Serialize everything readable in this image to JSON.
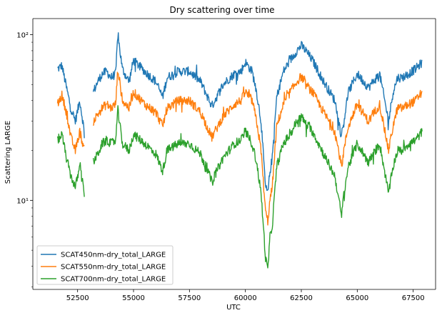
{
  "chart_data": {
    "type": "line",
    "title": "Dry scattering over time",
    "xlabel": "UTC",
    "ylabel": "Scattering LARGE",
    "xlim": [
      50500,
      68500
    ],
    "ylim": [
      2.9,
      125
    ],
    "yscale": "log",
    "grid": false,
    "legend_position": "lower-left",
    "x_ticks": [
      52500,
      55000,
      57500,
      60000,
      62500,
      65000,
      67500
    ],
    "x_tick_labels": [
      "52500",
      "55000",
      "57500",
      "60000",
      "62500",
      "65000",
      "67500"
    ],
    "y_ticks": [
      10,
      100
    ],
    "y_tick_labels": [
      "10¹",
      "10²"
    ],
    "x": [
      51600,
      51800,
      52000,
      52200,
      52400,
      52600,
      52800,
      53000,
      53200,
      53400,
      53600,
      53800,
      54000,
      54200,
      54300,
      54500,
      54800,
      55000,
      55500,
      56000,
      56300,
      56500,
      57000,
      57500,
      58000,
      58500,
      59000,
      59500,
      59800,
      60000,
      60300,
      60500,
      60700,
      60900,
      61000,
      61100,
      61200,
      61400,
      61700,
      62000,
      62300,
      62500,
      62700,
      63000,
      63500,
      64000,
      64300,
      64400,
      64600,
      65000,
      65500,
      66000,
      66400,
      66600,
      66800,
      67000,
      67300,
      67600,
      67900
    ],
    "series": [
      {
        "name": "SCAT450nm-dry_total_LARGE",
        "color": "#1f77b4",
        "values": [
          62,
          65,
          48,
          36,
          30,
          40,
          26,
          null,
          45,
          52,
          58,
          60,
          55,
          58,
          100,
          62,
          52,
          70,
          60,
          52,
          42,
          55,
          60,
          60,
          52,
          37,
          50,
          58,
          60,
          68,
          60,
          45,
          30,
          12,
          11,
          15,
          18,
          42,
          60,
          70,
          80,
          86,
          80,
          70,
          52,
          40,
          24,
          30,
          45,
          58,
          48,
          58,
          30,
          45,
          55,
          55,
          58,
          62,
          68
        ]
      },
      {
        "name": "SCAT550nm-dry_total_LARGE",
        "color": "#ff7f0e",
        "values": [
          38,
          43,
          34,
          24,
          20,
          26,
          20,
          null,
          30,
          33,
          36,
          38,
          36,
          38,
          62,
          40,
          36,
          45,
          38,
          34,
          28,
          36,
          40,
          40,
          34,
          24,
          32,
          38,
          40,
          45,
          40,
          30,
          20,
          8.5,
          7.5,
          10,
          12,
          28,
          38,
          45,
          52,
          56,
          50,
          45,
          34,
          26,
          16,
          20,
          28,
          38,
          30,
          38,
          20,
          28,
          36,
          36,
          38,
          40,
          45
        ]
      },
      {
        "name": "SCAT700nm-dry_total_LARGE",
        "color": "#2ca02c",
        "values": [
          23,
          25,
          18,
          14,
          12,
          16,
          11,
          null,
          17,
          19,
          22,
          23,
          22,
          23,
          35,
          22,
          20,
          25,
          22,
          19,
          15,
          20,
          22,
          22,
          19,
          13,
          18,
          22,
          23,
          26,
          22,
          17,
          11,
          4.5,
          3.8,
          6,
          7,
          16,
          22,
          25,
          30,
          32,
          29,
          26,
          19,
          14,
          8,
          11,
          16,
          22,
          17,
          22,
          11,
          16,
          20,
          20,
          22,
          23,
          26
        ]
      }
    ]
  }
}
